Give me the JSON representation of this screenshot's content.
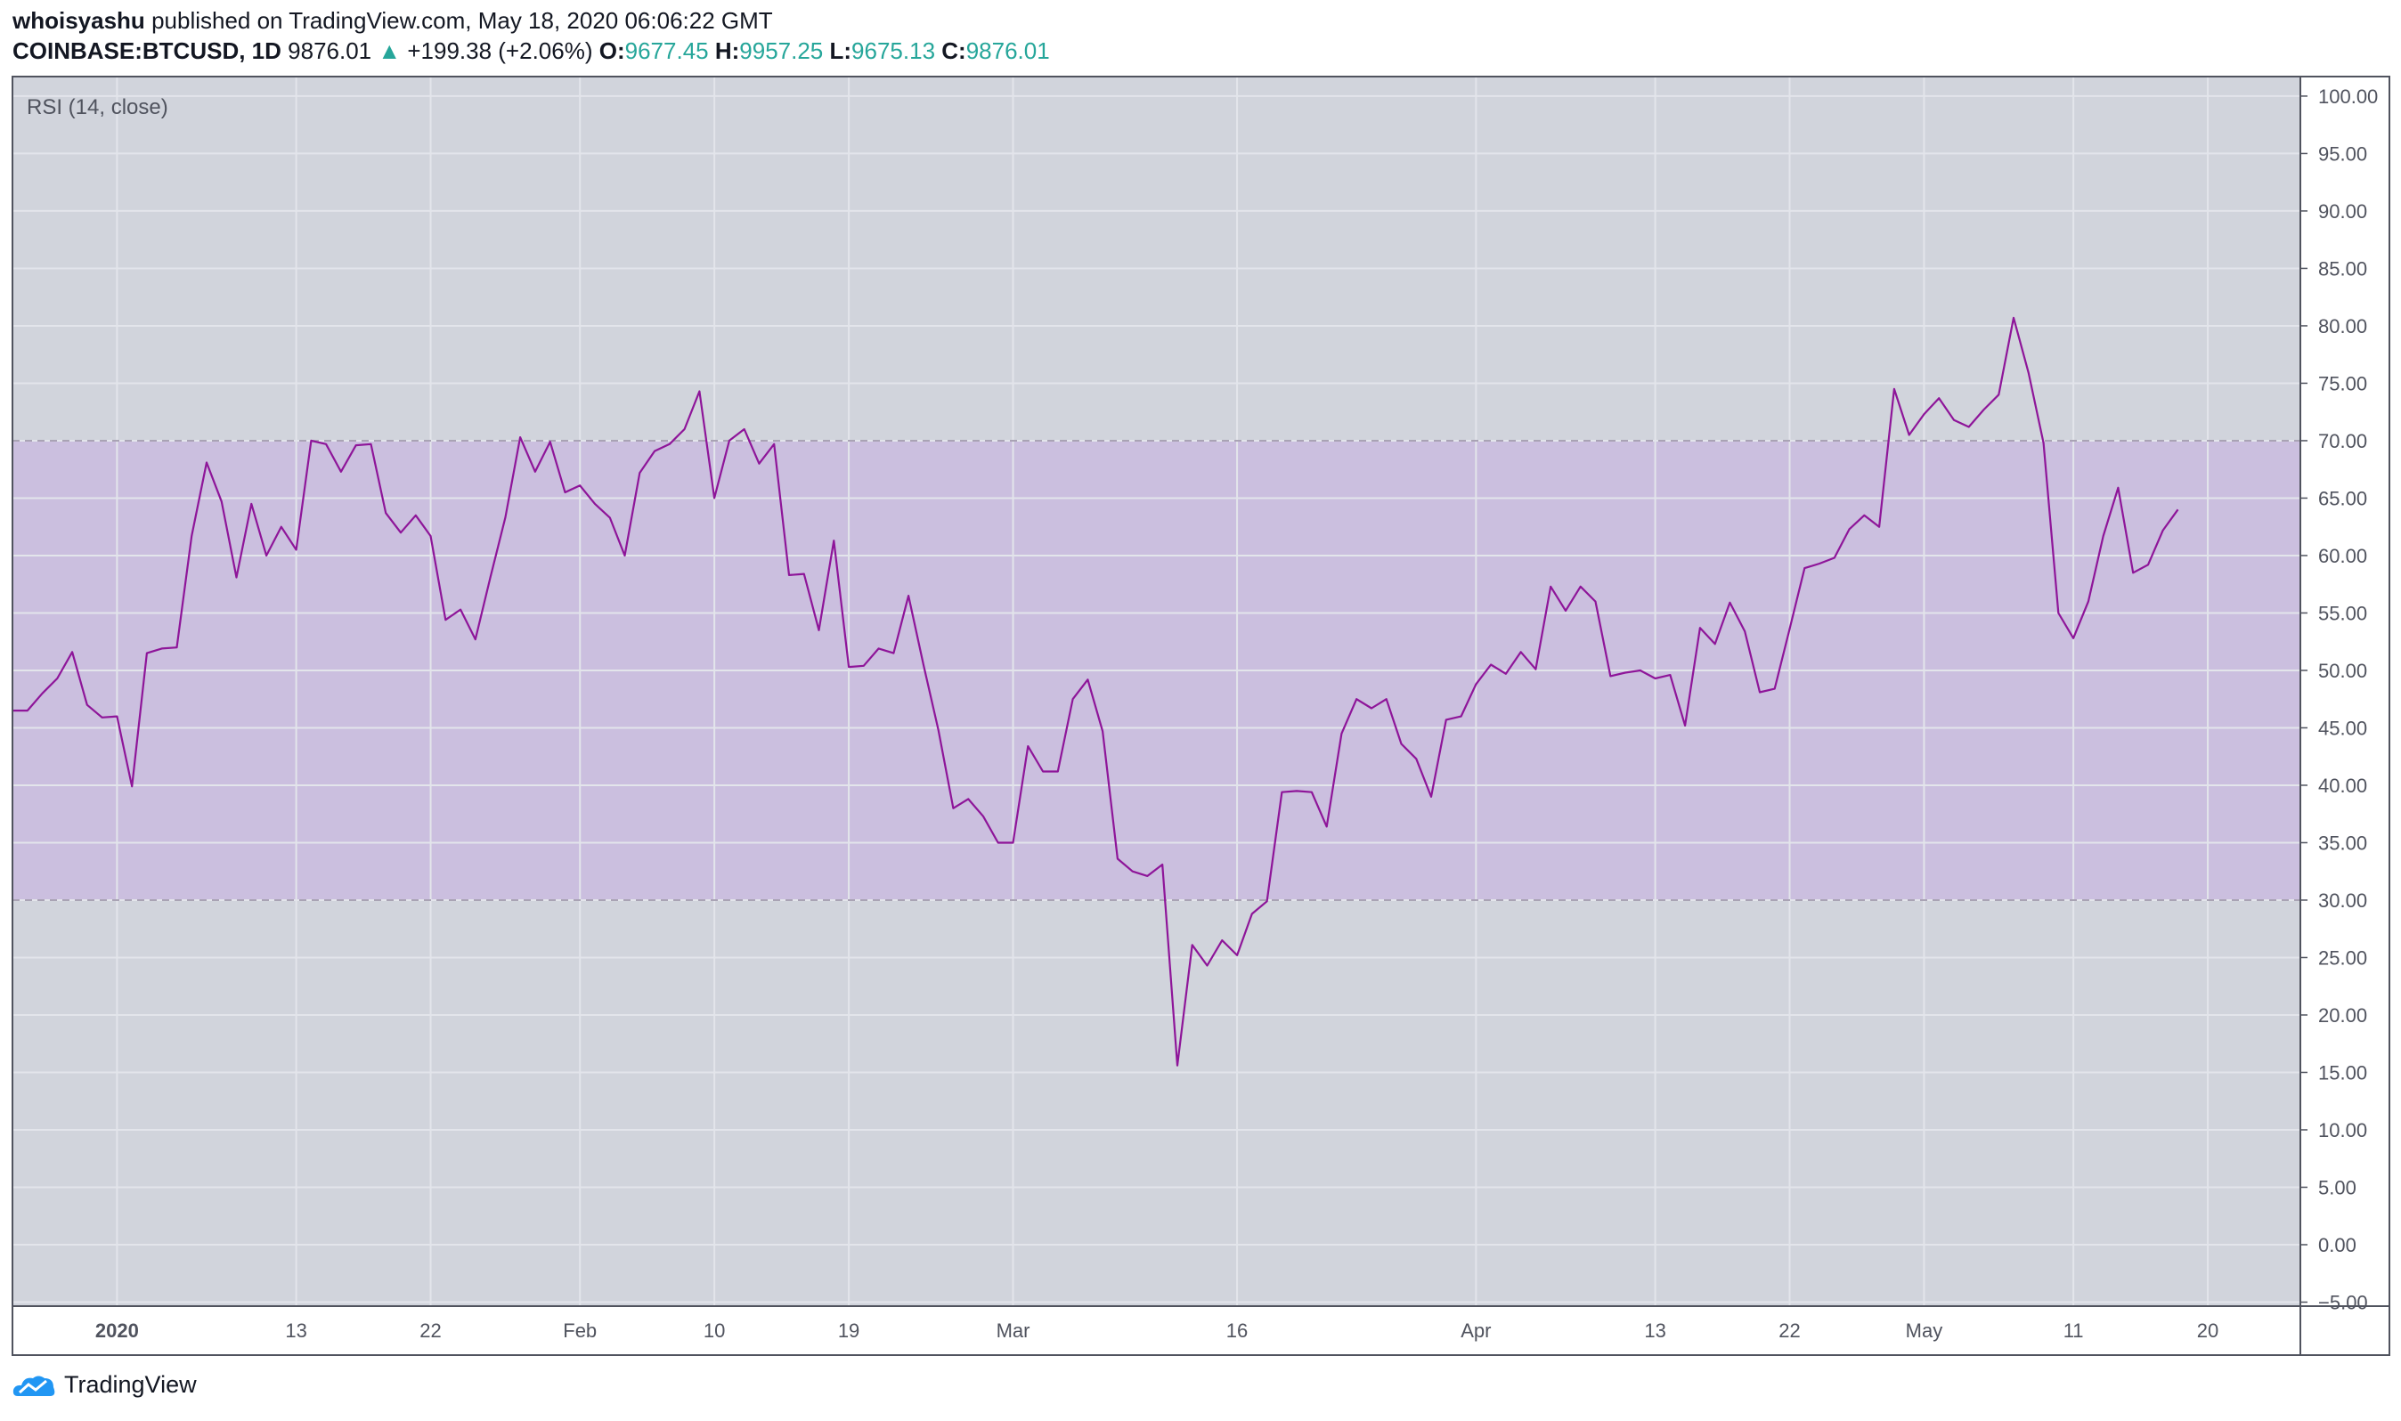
{
  "header": {
    "author": "whoisyashu",
    "published": "published on TradingView.com, May 18, 2020 06:06:22 GMT",
    "symbol": "COINBASE:BTCUSD, 1D",
    "last": "9876.01",
    "change": "+199.38 (+2.06%)",
    "o_label": "O:",
    "o": "9677.45",
    "h_label": "H:",
    "h": "9957.25",
    "l_label": "L:",
    "l": "9675.13",
    "c_label": "C:",
    "c": "9876.01"
  },
  "footer": {
    "brand": "TradingView"
  },
  "colors": {
    "background": "#d1d4dc",
    "band": "#cbbfdf",
    "line": "#8e1599",
    "grid": "#e3e5eb",
    "up": "#26a69a"
  },
  "chart_data": {
    "type": "line",
    "title": "RSI (14, close)",
    "xlabel": "",
    "ylabel": "",
    "x_start_date": "2019-12-25",
    "xlim": [
      0,
      153.2
    ],
    "ylim": [
      -5.35,
      101.7
    ],
    "yticks": [
      -5,
      0,
      5,
      10,
      15,
      20,
      25,
      30,
      35,
      40,
      45,
      50,
      55,
      60,
      65,
      70,
      75,
      80,
      85,
      90,
      95,
      100
    ],
    "ytick_labels": [
      "−5.00",
      "0.00",
      "5.00",
      "10.00",
      "15.00",
      "20.00",
      "25.00",
      "30.00",
      "35.00",
      "40.00",
      "45.00",
      "50.00",
      "55.00",
      "60.00",
      "65.00",
      "70.00",
      "75.00",
      "80.00",
      "85.00",
      "90.00",
      "95.00",
      "100.00"
    ],
    "xticks": [
      {
        "day": 7,
        "label": "2020",
        "bold": true
      },
      {
        "day": 19,
        "label": "13"
      },
      {
        "day": 28,
        "label": "22"
      },
      {
        "day": 38,
        "label": "Feb"
      },
      {
        "day": 47,
        "label": "10"
      },
      {
        "day": 56,
        "label": "19"
      },
      {
        "day": 67,
        "label": "Mar"
      },
      {
        "day": 82,
        "label": "16"
      },
      {
        "day": 98,
        "label": "Apr"
      },
      {
        "day": 110,
        "label": "13"
      },
      {
        "day": 119,
        "label": "22"
      },
      {
        "day": 128,
        "label": "May"
      },
      {
        "day": 138,
        "label": "11"
      },
      {
        "day": 147,
        "label": "20"
      }
    ],
    "bands": {
      "upper": 70,
      "lower": 30
    },
    "grid": true,
    "series": [
      {
        "name": "RSI",
        "values": [
          46.5,
          46.5,
          48,
          49.3,
          51.6,
          47,
          45.9,
          46,
          39.9,
          51.5,
          51.9,
          52,
          61.7,
          68.1,
          64.7,
          58.1,
          64.5,
          60,
          62.5,
          60.5,
          70,
          69.7,
          67.3,
          69.6,
          69.7,
          63.7,
          62,
          63.5,
          61.7,
          54.4,
          55.3,
          52.7,
          58.1,
          63.3,
          70.3,
          67.3,
          69.9,
          65.5,
          66.1,
          64.5,
          63.3,
          60,
          67.2,
          69.1,
          69.7,
          71,
          74.3,
          65,
          70,
          71,
          68,
          69.7,
          58.3,
          58.4,
          53.5,
          61.3,
          50.3,
          50.4,
          51.9,
          51.5,
          56.5,
          50.5,
          44.8,
          38,
          38.8,
          37.3,
          35,
          35,
          43.4,
          41.2,
          41.2,
          47.5,
          49.2,
          44.7,
          33.6,
          32.5,
          32.1,
          33.1,
          15.6,
          26.1,
          24.3,
          26.5,
          25.2,
          28.8,
          29.9,
          39.4,
          39.5,
          39.4,
          36.4,
          44.5,
          47.5,
          46.7,
          47.5,
          43.6,
          42.3,
          39,
          45.7,
          46,
          48.8,
          50.5,
          49.7,
          51.6,
          50.1,
          57.3,
          55.2,
          57.3,
          56,
          49.5,
          49.8,
          50,
          49.3,
          49.6,
          45.2,
          53.7,
          52.3,
          55.9,
          53.4,
          48.1,
          48.4,
          53.6,
          58.9,
          59.3,
          59.8,
          62.3,
          63.5,
          62.5,
          74.5,
          70.5,
          72.3,
          73.7,
          71.8,
          71.2,
          72.7,
          74,
          80.7,
          75.9,
          69.8,
          55,
          52.8,
          56,
          61.7,
          65.9,
          58.5,
          59.2,
          62.2,
          64
        ]
      }
    ]
  }
}
